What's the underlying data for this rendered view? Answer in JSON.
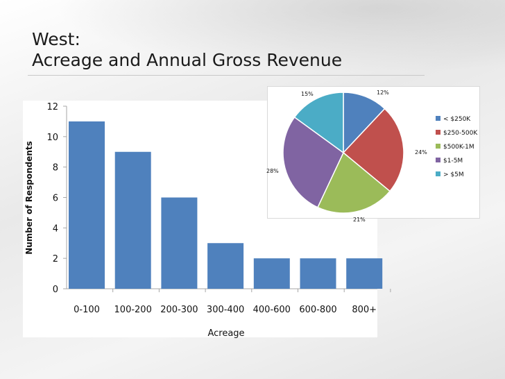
{
  "slide": {
    "title_line1": "West:",
    "title_line2": "Acreage and Annual Gross Revenue"
  },
  "chart_data": [
    {
      "type": "bar",
      "title": "",
      "categories": [
        "0-100",
        "100-200",
        "200-300",
        "300-400",
        "400-600",
        "600-800",
        "800+"
      ],
      "values": [
        11,
        9,
        6,
        3,
        2,
        2,
        2
      ],
      "xlabel": "Acreage",
      "ylabel": "Number of Respondents",
      "ylim": [
        0,
        12
      ],
      "yticks": [
        0,
        2,
        4,
        6,
        8,
        10,
        12
      ],
      "color": "#4f81bd",
      "grid": false
    },
    {
      "type": "pie",
      "title": "",
      "labels": [
        "< $250K",
        "$250-500K",
        "$500K-1M",
        "$1-5M",
        "> $5M"
      ],
      "values": [
        12,
        24,
        21,
        28,
        15
      ],
      "value_labels": [
        "12%",
        "24%",
        "21%",
        "28%",
        "15%"
      ],
      "colors": [
        "#4f81bd",
        "#c0504d",
        "#9bbb59",
        "#8064a2",
        "#4bacc6"
      ],
      "legend": "right"
    }
  ]
}
